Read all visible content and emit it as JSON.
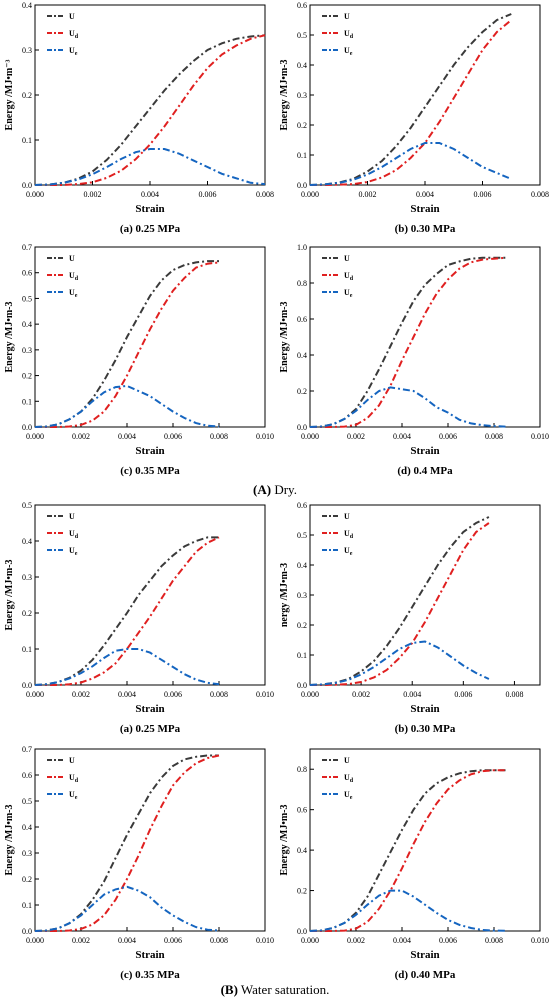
{
  "sections": [
    {
      "caption_label": "(A)",
      "caption_text": " Dry."
    },
    {
      "caption_label": "(B)",
      "caption_text": " Water saturation."
    }
  ],
  "series_colors": [
    "#3a3a3a",
    "#e02020",
    "#1565c0"
  ],
  "chart_data": [
    {
      "type": "line",
      "caption": "(a) 0.25 MPa",
      "xlabel": "Strain",
      "ylabel": "Energy /MJ•m⁻³",
      "xlim": [
        0,
        0.008
      ],
      "xticks": [
        0,
        0.002,
        0.004,
        0.006,
        0.008
      ],
      "xtick_labels": [
        "0.000",
        "0.002",
        "0.004",
        "0.006",
        "0.008"
      ],
      "ylim": [
        0,
        0.4
      ],
      "yticks": [
        0,
        0.1,
        0.2,
        0.3,
        0.4
      ],
      "ytick_labels": [
        "0.0",
        "0.1",
        "0.2",
        "0.3",
        "0.4"
      ],
      "x": [
        0,
        0.0005,
        0.001,
        0.0015,
        0.002,
        0.0025,
        0.003,
        0.0035,
        0.004,
        0.0045,
        0.005,
        0.0055,
        0.006,
        0.0065,
        0.007,
        0.0075,
        0.008
      ],
      "series": [
        {
          "name": "U",
          "sub": "",
          "values": [
            0,
            0.001,
            0.005,
            0.014,
            0.03,
            0.056,
            0.09,
            0.13,
            0.17,
            0.21,
            0.245,
            0.275,
            0.3,
            0.315,
            0.325,
            0.33,
            0.333
          ]
        },
        {
          "name": "U",
          "sub": "d",
          "values": [
            0,
            0,
            0,
            0.002,
            0.006,
            0.016,
            0.032,
            0.057,
            0.09,
            0.13,
            0.175,
            0.22,
            0.26,
            0.29,
            0.31,
            0.325,
            0.333
          ]
        },
        {
          "name": "U",
          "sub": "e",
          "values": [
            0,
            0.001,
            0.005,
            0.012,
            0.024,
            0.04,
            0.058,
            0.073,
            0.08,
            0.08,
            0.07,
            0.055,
            0.04,
            0.025,
            0.015,
            0.005,
            0.002
          ]
        }
      ]
    },
    {
      "type": "line",
      "caption": "(b) 0.30 MPa",
      "xlabel": "Strain",
      "ylabel": "Energy /MJ•m-3",
      "xlim": [
        0,
        0.008
      ],
      "xticks": [
        0,
        0.002,
        0.004,
        0.006,
        0.008
      ],
      "xtick_labels": [
        "0.000",
        "0.002",
        "0.004",
        "0.006",
        "0.008"
      ],
      "ylim": [
        0,
        0.6
      ],
      "yticks": [
        0,
        0.1,
        0.2,
        0.3,
        0.4,
        0.5,
        0.6
      ],
      "ytick_labels": [
        "0.0",
        "0.1",
        "0.2",
        "0.3",
        "0.4",
        "0.5",
        "0.6"
      ],
      "x": [
        0,
        0.0005,
        0.001,
        0.0015,
        0.002,
        0.0025,
        0.003,
        0.0035,
        0.004,
        0.0045,
        0.005,
        0.0055,
        0.006,
        0.0065,
        0.007
      ],
      "series": [
        {
          "name": "U",
          "sub": "",
          "values": [
            0,
            0.002,
            0.008,
            0.02,
            0.045,
            0.08,
            0.13,
            0.19,
            0.26,
            0.33,
            0.4,
            0.46,
            0.51,
            0.55,
            0.57
          ]
        },
        {
          "name": "U",
          "sub": "d",
          "values": [
            0,
            0,
            0.001,
            0.003,
            0.01,
            0.025,
            0.05,
            0.09,
            0.14,
            0.21,
            0.29,
            0.37,
            0.45,
            0.51,
            0.55
          ]
        },
        {
          "name": "U",
          "sub": "e",
          "values": [
            0,
            0.002,
            0.007,
            0.017,
            0.035,
            0.06,
            0.09,
            0.12,
            0.14,
            0.14,
            0.12,
            0.09,
            0.06,
            0.04,
            0.02
          ]
        }
      ]
    },
    {
      "type": "line",
      "caption": "(c) 0.35 MPa",
      "xlabel": "Strain",
      "ylabel": "Energy /MJ•m-3",
      "xlim": [
        0,
        0.01
      ],
      "xticks": [
        0,
        0.002,
        0.004,
        0.006,
        0.008,
        0.01
      ],
      "xtick_labels": [
        "0.000",
        "0.002",
        "0.004",
        "0.006",
        "0.008",
        "0.010"
      ],
      "ylim": [
        0,
        0.7
      ],
      "yticks": [
        0,
        0.1,
        0.2,
        0.3,
        0.4,
        0.5,
        0.6,
        0.7
      ],
      "ytick_labels": [
        "0.0",
        "0.1",
        "0.2",
        "0.3",
        "0.4",
        "0.5",
        "0.6",
        "0.7"
      ],
      "x": [
        0,
        0.0005,
        0.001,
        0.0015,
        0.002,
        0.0025,
        0.003,
        0.0035,
        0.004,
        0.0045,
        0.005,
        0.0055,
        0.006,
        0.0065,
        0.007,
        0.0075,
        0.008
      ],
      "series": [
        {
          "name": "U",
          "sub": "",
          "values": [
            0,
            0.002,
            0.01,
            0.03,
            0.06,
            0.11,
            0.18,
            0.26,
            0.35,
            0.43,
            0.51,
            0.57,
            0.61,
            0.63,
            0.64,
            0.645,
            0.645
          ]
        },
        {
          "name": "U",
          "sub": "d",
          "values": [
            0,
            0,
            0,
            0.002,
            0.008,
            0.025,
            0.06,
            0.12,
            0.2,
            0.29,
            0.38,
            0.46,
            0.53,
            0.58,
            0.62,
            0.635,
            0.64
          ]
        },
        {
          "name": "U",
          "sub": "e",
          "values": [
            0,
            0.002,
            0.01,
            0.03,
            0.06,
            0.1,
            0.135,
            0.155,
            0.16,
            0.14,
            0.12,
            0.09,
            0.06,
            0.035,
            0.015,
            0.005,
            0.002
          ]
        }
      ]
    },
    {
      "type": "line",
      "caption": "(d) 0.4 MPa",
      "xlabel": "Strain",
      "ylabel": "Energy /MJ•m-3",
      "xlim": [
        0,
        0.01
      ],
      "xticks": [
        0,
        0.002,
        0.004,
        0.006,
        0.008,
        0.01
      ],
      "xtick_labels": [
        "0.000",
        "0.002",
        "0.004",
        "0.006",
        "0.008",
        "0.010"
      ],
      "ylim": [
        0,
        1.0
      ],
      "yticks": [
        0,
        0.2,
        0.4,
        0.6,
        0.8,
        1.0
      ],
      "ytick_labels": [
        "0.0",
        "0.2",
        "0.4",
        "0.6",
        "0.8",
        "1.0"
      ],
      "x": [
        0,
        0.0005,
        0.001,
        0.0015,
        0.002,
        0.0025,
        0.003,
        0.0035,
        0.004,
        0.0045,
        0.005,
        0.0055,
        0.006,
        0.0065,
        0.007,
        0.0075,
        0.008,
        0.0085
      ],
      "series": [
        {
          "name": "U",
          "sub": "",
          "values": [
            0,
            0.003,
            0.015,
            0.045,
            0.1,
            0.2,
            0.32,
            0.45,
            0.58,
            0.7,
            0.79,
            0.85,
            0.9,
            0.92,
            0.935,
            0.94,
            0.94,
            0.94
          ]
        },
        {
          "name": "U",
          "sub": "d",
          "values": [
            0,
            0,
            0,
            0.002,
            0.012,
            0.05,
            0.12,
            0.23,
            0.37,
            0.5,
            0.63,
            0.74,
            0.82,
            0.88,
            0.915,
            0.93,
            0.935,
            0.94
          ]
        },
        {
          "name": "U",
          "sub": "e",
          "values": [
            0,
            0.003,
            0.015,
            0.045,
            0.09,
            0.15,
            0.2,
            0.22,
            0.21,
            0.2,
            0.16,
            0.11,
            0.08,
            0.04,
            0.02,
            0.01,
            0.005,
            0.002
          ]
        }
      ]
    },
    {
      "type": "line",
      "caption": "(a) 0.25 MPa",
      "xlabel": "Strain",
      "ylabel": "Energy /MJ•m-3",
      "xlim": [
        0,
        0.01
      ],
      "xticks": [
        0,
        0.002,
        0.004,
        0.006,
        0.008,
        0.01
      ],
      "xtick_labels": [
        "0.000",
        "0.002",
        "0.004",
        "0.006",
        "0.008",
        "0.010"
      ],
      "ylim": [
        0,
        0.5
      ],
      "yticks": [
        0,
        0.1,
        0.2,
        0.3,
        0.4,
        0.5
      ],
      "ytick_labels": [
        "0.0",
        "0.1",
        "0.2",
        "0.3",
        "0.4",
        "0.5"
      ],
      "x": [
        0,
        0.0005,
        0.001,
        0.0015,
        0.002,
        0.0025,
        0.003,
        0.0035,
        0.004,
        0.0045,
        0.005,
        0.0055,
        0.006,
        0.0065,
        0.007,
        0.0075,
        0.008
      ],
      "series": [
        {
          "name": "U",
          "sub": "",
          "values": [
            0,
            0.002,
            0.008,
            0.02,
            0.04,
            0.07,
            0.11,
            0.155,
            0.2,
            0.25,
            0.29,
            0.33,
            0.36,
            0.385,
            0.4,
            0.41,
            0.41
          ]
        },
        {
          "name": "U",
          "sub": "d",
          "values": [
            0,
            0,
            0,
            0.002,
            0.007,
            0.018,
            0.035,
            0.06,
            0.1,
            0.145,
            0.19,
            0.24,
            0.29,
            0.33,
            0.37,
            0.395,
            0.41
          ]
        },
        {
          "name": "U",
          "sub": "e",
          "values": [
            0,
            0.002,
            0.008,
            0.018,
            0.033,
            0.052,
            0.075,
            0.095,
            0.1,
            0.1,
            0.09,
            0.07,
            0.05,
            0.03,
            0.015,
            0.006,
            0.002
          ]
        }
      ]
    },
    {
      "type": "line",
      "caption": "(b) 0.30 MPa",
      "xlabel": "Strain",
      "ylabel": "nergy /MJ•m-3",
      "xlim": [
        0,
        0.009
      ],
      "xticks": [
        0,
        0.002,
        0.004,
        0.006,
        0.008
      ],
      "xtick_labels": [
        "0.000",
        "0.002",
        "0.004",
        "0.006",
        "0.008"
      ],
      "ylim": [
        0,
        0.6
      ],
      "yticks": [
        0,
        0.1,
        0.2,
        0.3,
        0.4,
        0.5,
        0.6
      ],
      "ytick_labels": [
        "0.0",
        "0.1",
        "0.2",
        "0.3",
        "0.4",
        "0.5",
        "0.6"
      ],
      "x": [
        0,
        0.0005,
        0.001,
        0.0015,
        0.002,
        0.0025,
        0.003,
        0.0035,
        0.004,
        0.0045,
        0.005,
        0.0055,
        0.006,
        0.0065,
        0.007
      ],
      "series": [
        {
          "name": "U",
          "sub": "",
          "values": [
            0,
            0.002,
            0.008,
            0.02,
            0.045,
            0.08,
            0.13,
            0.19,
            0.26,
            0.33,
            0.4,
            0.46,
            0.51,
            0.54,
            0.56
          ]
        },
        {
          "name": "U",
          "sub": "d",
          "values": [
            0,
            0,
            0.001,
            0.003,
            0.01,
            0.025,
            0.05,
            0.09,
            0.14,
            0.21,
            0.29,
            0.37,
            0.45,
            0.51,
            0.54
          ]
        },
        {
          "name": "U",
          "sub": "e",
          "values": [
            0,
            0.002,
            0.007,
            0.017,
            0.035,
            0.06,
            0.09,
            0.12,
            0.14,
            0.145,
            0.125,
            0.095,
            0.065,
            0.04,
            0.02
          ]
        }
      ]
    },
    {
      "type": "line",
      "caption": "(c) 0.35 MPa",
      "xlabel": "Strain",
      "ylabel": "Energy /MJ•m-3",
      "xlim": [
        0,
        0.01
      ],
      "xticks": [
        0,
        0.002,
        0.004,
        0.006,
        0.008,
        0.01
      ],
      "xtick_labels": [
        "0.000",
        "0.002",
        "0.004",
        "0.006",
        "0.008",
        "0.010"
      ],
      "ylim": [
        0,
        0.7
      ],
      "yticks": [
        0,
        0.1,
        0.2,
        0.3,
        0.4,
        0.5,
        0.6,
        0.7
      ],
      "ytick_labels": [
        "0.0",
        "0.1",
        "0.2",
        "0.3",
        "0.4",
        "0.5",
        "0.6",
        "0.7"
      ],
      "x": [
        0,
        0.0005,
        0.001,
        0.0015,
        0.002,
        0.0025,
        0.003,
        0.0035,
        0.004,
        0.0045,
        0.005,
        0.0055,
        0.006,
        0.0065,
        0.007,
        0.0075,
        0.008
      ],
      "series": [
        {
          "name": "U",
          "sub": "",
          "values": [
            0,
            0.002,
            0.01,
            0.03,
            0.065,
            0.12,
            0.19,
            0.28,
            0.37,
            0.45,
            0.53,
            0.59,
            0.635,
            0.66,
            0.67,
            0.675,
            0.675
          ]
        },
        {
          "name": "U",
          "sub": "d",
          "values": [
            0,
            0,
            0,
            0.002,
            0.008,
            0.025,
            0.06,
            0.12,
            0.2,
            0.29,
            0.39,
            0.48,
            0.56,
            0.61,
            0.645,
            0.665,
            0.675
          ]
        },
        {
          "name": "U",
          "sub": "e",
          "values": [
            0,
            0.002,
            0.01,
            0.03,
            0.06,
            0.1,
            0.14,
            0.16,
            0.17,
            0.155,
            0.13,
            0.09,
            0.06,
            0.035,
            0.015,
            0.005,
            0.002
          ]
        }
      ]
    },
    {
      "type": "line",
      "caption": "(d) 0.40 MPa",
      "xlabel": "Strain",
      "ylabel": "Energy /MJ•m-3",
      "xlim": [
        0,
        0.01
      ],
      "xticks": [
        0,
        0.002,
        0.004,
        0.006,
        0.008,
        0.01
      ],
      "xtick_labels": [
        "0.000",
        "0.002",
        "0.004",
        "0.006",
        "0.008",
        "0.010"
      ],
      "ylim": [
        0,
        0.9
      ],
      "yticks": [
        0,
        0.2,
        0.4,
        0.6,
        0.8
      ],
      "ytick_labels": [
        "0.0",
        "0.2",
        "0.4",
        "0.6",
        "0.8"
      ],
      "x": [
        0,
        0.0005,
        0.001,
        0.0015,
        0.002,
        0.0025,
        0.003,
        0.0035,
        0.004,
        0.0045,
        0.005,
        0.0055,
        0.006,
        0.0065,
        0.007,
        0.0075,
        0.008,
        0.0085
      ],
      "series": [
        {
          "name": "U",
          "sub": "",
          "values": [
            0,
            0.003,
            0.015,
            0.04,
            0.09,
            0.17,
            0.28,
            0.39,
            0.5,
            0.6,
            0.68,
            0.73,
            0.76,
            0.78,
            0.79,
            0.795,
            0.795,
            0.795
          ]
        },
        {
          "name": "U",
          "sub": "d",
          "values": [
            0,
            0,
            0,
            0.002,
            0.012,
            0.045,
            0.11,
            0.2,
            0.31,
            0.43,
            0.54,
            0.63,
            0.7,
            0.745,
            0.775,
            0.79,
            0.795,
            0.795
          ]
        },
        {
          "name": "U",
          "sub": "e",
          "values": [
            0,
            0.003,
            0.015,
            0.04,
            0.08,
            0.13,
            0.175,
            0.2,
            0.2,
            0.17,
            0.13,
            0.09,
            0.055,
            0.03,
            0.015,
            0.005,
            0.002,
            0.001
          ]
        }
      ]
    }
  ]
}
